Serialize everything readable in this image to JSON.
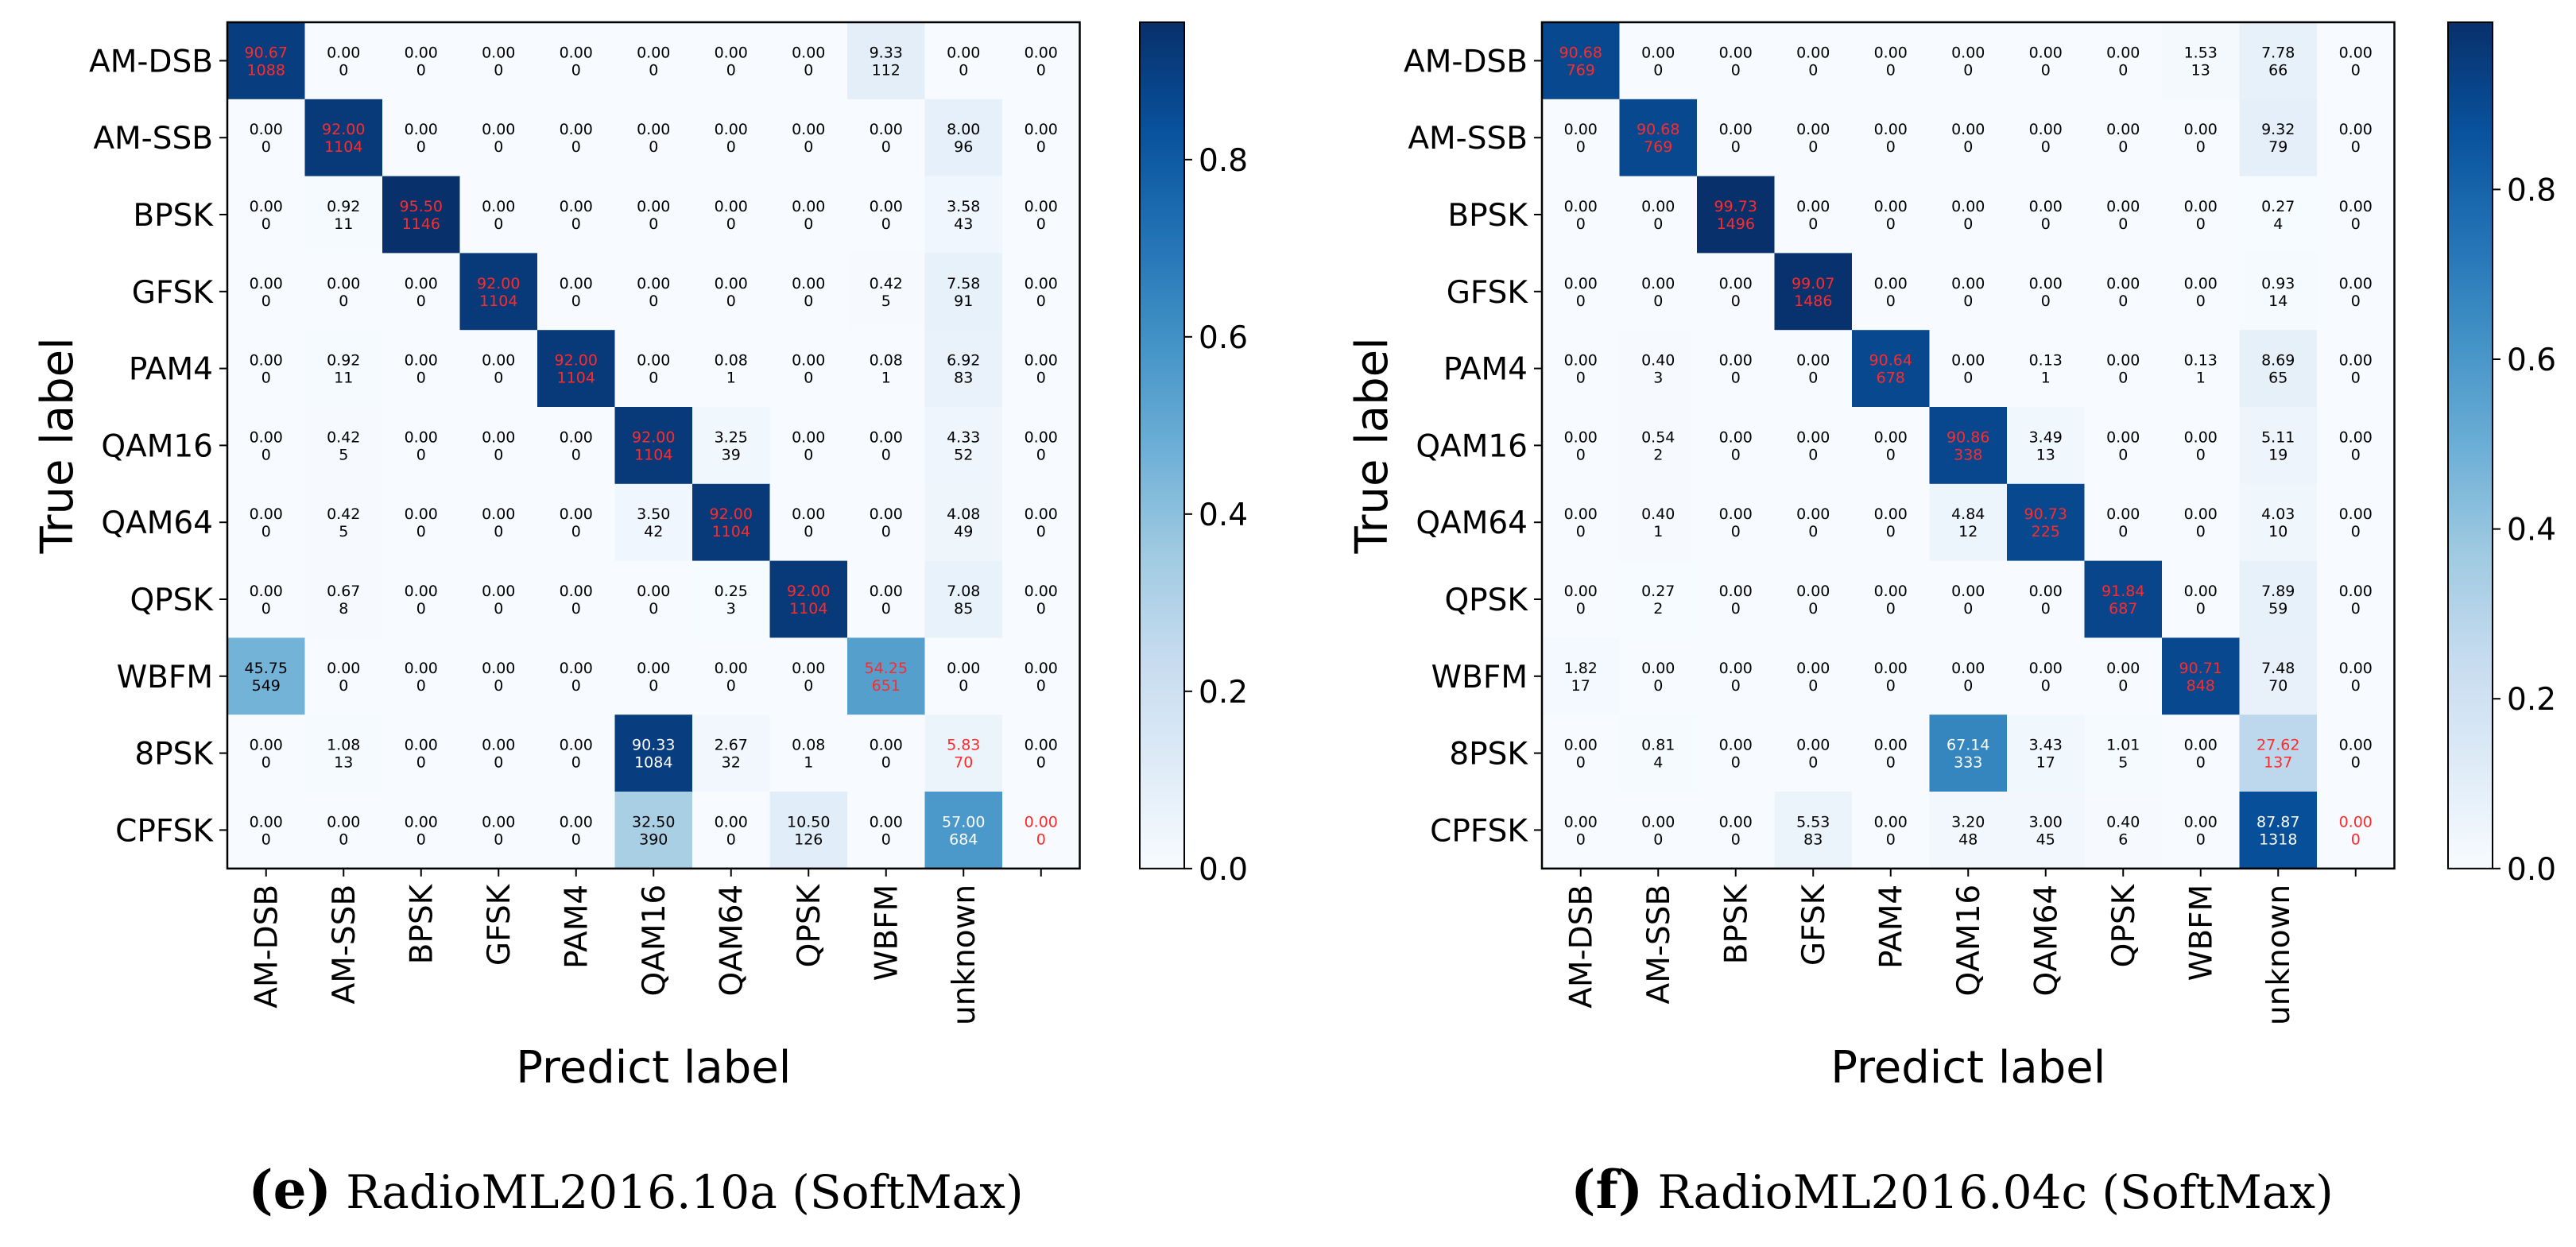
{
  "chart_data": [
    {
      "type": "heatmap",
      "subtitle": "confusion matrix",
      "caption_letter": "(e)",
      "caption_text": "RadioML2016.10a (SoftMax)",
      "xlabel": "Predict label",
      "ylabel": "True label",
      "row_labels": [
        "AM-DSB",
        "AM-SSB",
        "BPSK",
        "GFSK",
        "PAM4",
        "QAM16",
        "QAM64",
        "QPSK",
        "WBFM",
        "8PSK",
        "CPFSK"
      ],
      "col_labels": [
        "AM-DSB",
        "AM-SSB",
        "BPSK",
        "GFSK",
        "PAM4",
        "QAM16",
        "QAM64",
        "QPSK",
        "WBFM",
        "unknown",
        ""
      ],
      "pct": [
        [
          "90.67",
          "0.00",
          "0.00",
          "0.00",
          "0.00",
          "0.00",
          "0.00",
          "0.00",
          "9.33",
          "0.00",
          "0.00"
        ],
        [
          "0.00",
          "92.00",
          "0.00",
          "0.00",
          "0.00",
          "0.00",
          "0.00",
          "0.00",
          "0.00",
          "8.00",
          "0.00"
        ],
        [
          "0.00",
          "0.92",
          "95.50",
          "0.00",
          "0.00",
          "0.00",
          "0.00",
          "0.00",
          "0.00",
          "3.58",
          "0.00"
        ],
        [
          "0.00",
          "0.00",
          "0.00",
          "92.00",
          "0.00",
          "0.00",
          "0.00",
          "0.00",
          "0.42",
          "7.58",
          "0.00"
        ],
        [
          "0.00",
          "0.92",
          "0.00",
          "0.00",
          "92.00",
          "0.00",
          "0.08",
          "0.00",
          "0.08",
          "6.92",
          "0.00"
        ],
        [
          "0.00",
          "0.42",
          "0.00",
          "0.00",
          "0.00",
          "92.00",
          "3.25",
          "0.00",
          "0.00",
          "4.33",
          "0.00"
        ],
        [
          "0.00",
          "0.42",
          "0.00",
          "0.00",
          "0.00",
          "3.50",
          "92.00",
          "0.00",
          "0.00",
          "4.08",
          "0.00"
        ],
        [
          "0.00",
          "0.67",
          "0.00",
          "0.00",
          "0.00",
          "0.00",
          "0.25",
          "92.00",
          "0.00",
          "7.08",
          "0.00"
        ],
        [
          "45.75",
          "0.00",
          "0.00",
          "0.00",
          "0.00",
          "0.00",
          "0.00",
          "0.00",
          "54.25",
          "0.00",
          "0.00"
        ],
        [
          "0.00",
          "1.08",
          "0.00",
          "0.00",
          "0.00",
          "90.33",
          "2.67",
          "0.08",
          "0.00",
          "5.83",
          "0.00"
        ],
        [
          "0.00",
          "0.00",
          "0.00",
          "0.00",
          "0.00",
          "32.50",
          "0.00",
          "10.50",
          "0.00",
          "57.00",
          "0.00"
        ]
      ],
      "counts": [
        [
          "1088",
          "0",
          "0",
          "0",
          "0",
          "0",
          "0",
          "0",
          "112",
          "0",
          "0"
        ],
        [
          "0",
          "1104",
          "0",
          "0",
          "0",
          "0",
          "0",
          "0",
          "0",
          "96",
          "0"
        ],
        [
          "0",
          "11",
          "1146",
          "0",
          "0",
          "0",
          "0",
          "0",
          "0",
          "43",
          "0"
        ],
        [
          "0",
          "0",
          "0",
          "1104",
          "0",
          "0",
          "0",
          "0",
          "5",
          "91",
          "0"
        ],
        [
          "0",
          "11",
          "0",
          "0",
          "1104",
          "0",
          "1",
          "0",
          "1",
          "83",
          "0"
        ],
        [
          "0",
          "5",
          "0",
          "0",
          "0",
          "1104",
          "39",
          "0",
          "0",
          "52",
          "0"
        ],
        [
          "0",
          "5",
          "0",
          "0",
          "0",
          "42",
          "1104",
          "0",
          "0",
          "49",
          "0"
        ],
        [
          "0",
          "8",
          "0",
          "0",
          "0",
          "0",
          "3",
          "1104",
          "0",
          "85",
          "0"
        ],
        [
          "549",
          "0",
          "0",
          "0",
          "0",
          "0",
          "0",
          "0",
          "651",
          "0",
          "0"
        ],
        [
          "0",
          "13",
          "0",
          "0",
          "0",
          "1084",
          "32",
          "1",
          "0",
          "70",
          "0"
        ],
        [
          "0",
          "0",
          "0",
          "0",
          "0",
          "390",
          "0",
          "126",
          "0",
          "684",
          "0"
        ]
      ],
      "colorbar": {
        "range": [
          0.0,
          0.955
        ],
        "ticks": [
          "0.0",
          "0.2",
          "0.4",
          "0.6",
          "0.8"
        ]
      },
      "colormap": {
        "low": "#f7fbff",
        "mid": "#6baed6",
        "high": "#08306b",
        "diag_text": "#ff2a2a",
        "text": "#000000"
      }
    },
    {
      "type": "heatmap",
      "subtitle": "confusion matrix",
      "caption_letter": "(f)",
      "caption_text": "RadioML2016.04c (SoftMax)",
      "xlabel": "Predict label",
      "ylabel": "True label",
      "row_labels": [
        "AM-DSB",
        "AM-SSB",
        "BPSK",
        "GFSK",
        "PAM4",
        "QAM16",
        "QAM64",
        "QPSK",
        "WBFM",
        "8PSK",
        "CPFSK"
      ],
      "col_labels": [
        "AM-DSB",
        "AM-SSB",
        "BPSK",
        "GFSK",
        "PAM4",
        "QAM16",
        "QAM64",
        "QPSK",
        "WBFM",
        "unknown",
        ""
      ],
      "pct": [
        [
          "90.68",
          "0.00",
          "0.00",
          "0.00",
          "0.00",
          "0.00",
          "0.00",
          "0.00",
          "1.53",
          "7.78",
          "0.00"
        ],
        [
          "0.00",
          "90.68",
          "0.00",
          "0.00",
          "0.00",
          "0.00",
          "0.00",
          "0.00",
          "0.00",
          "9.32",
          "0.00"
        ],
        [
          "0.00",
          "0.00",
          "99.73",
          "0.00",
          "0.00",
          "0.00",
          "0.00",
          "0.00",
          "0.00",
          "0.27",
          "0.00"
        ],
        [
          "0.00",
          "0.00",
          "0.00",
          "99.07",
          "0.00",
          "0.00",
          "0.00",
          "0.00",
          "0.00",
          "0.93",
          "0.00"
        ],
        [
          "0.00",
          "0.40",
          "0.00",
          "0.00",
          "90.64",
          "0.00",
          "0.13",
          "0.00",
          "0.13",
          "8.69",
          "0.00"
        ],
        [
          "0.00",
          "0.54",
          "0.00",
          "0.00",
          "0.00",
          "90.86",
          "3.49",
          "0.00",
          "0.00",
          "5.11",
          "0.00"
        ],
        [
          "0.00",
          "0.40",
          "0.00",
          "0.00",
          "0.00",
          "4.84",
          "90.73",
          "0.00",
          "0.00",
          "4.03",
          "0.00"
        ],
        [
          "0.00",
          "0.27",
          "0.00",
          "0.00",
          "0.00",
          "0.00",
          "0.00",
          "91.84",
          "0.00",
          "7.89",
          "0.00"
        ],
        [
          "1.82",
          "0.00",
          "0.00",
          "0.00",
          "0.00",
          "0.00",
          "0.00",
          "0.00",
          "90.71",
          "7.48",
          "0.00"
        ],
        [
          "0.00",
          "0.81",
          "0.00",
          "0.00",
          "0.00",
          "67.14",
          "3.43",
          "1.01",
          "0.00",
          "27.62",
          "0.00"
        ],
        [
          "0.00",
          "0.00",
          "0.00",
          "5.53",
          "0.00",
          "3.20",
          "3.00",
          "0.40",
          "0.00",
          "87.87",
          "0.00"
        ]
      ],
      "counts": [
        [
          "769",
          "0",
          "0",
          "0",
          "0",
          "0",
          "0",
          "0",
          "13",
          "66",
          "0"
        ],
        [
          "0",
          "769",
          "0",
          "0",
          "0",
          "0",
          "0",
          "0",
          "0",
          "79",
          "0"
        ],
        [
          "0",
          "0",
          "1496",
          "0",
          "0",
          "0",
          "0",
          "0",
          "0",
          "4",
          "0"
        ],
        [
          "0",
          "0",
          "0",
          "1486",
          "0",
          "0",
          "0",
          "0",
          "0",
          "14",
          "0"
        ],
        [
          "0",
          "3",
          "0",
          "0",
          "678",
          "0",
          "1",
          "0",
          "1",
          "65",
          "0"
        ],
        [
          "0",
          "2",
          "0",
          "0",
          "0",
          "338",
          "13",
          "0",
          "0",
          "19",
          "0"
        ],
        [
          "0",
          "1",
          "0",
          "0",
          "0",
          "12",
          "225",
          "0",
          "0",
          "10",
          "0"
        ],
        [
          "0",
          "2",
          "0",
          "0",
          "0",
          "0",
          "0",
          "687",
          "0",
          "59",
          "0"
        ],
        [
          "17",
          "0",
          "0",
          "0",
          "0",
          "0",
          "0",
          "0",
          "848",
          "70",
          "0"
        ],
        [
          "0",
          "4",
          "0",
          "0",
          "0",
          "333",
          "17",
          "5",
          "0",
          "137",
          "0"
        ],
        [
          "0",
          "0",
          "0",
          "83",
          "0",
          "48",
          "45",
          "6",
          "0",
          "1318",
          "0"
        ]
      ],
      "colorbar": {
        "range": [
          0.0,
          0.997
        ],
        "ticks": [
          "0.0",
          "0.2",
          "0.4",
          "0.6",
          "0.8"
        ]
      },
      "colormap": {
        "low": "#f7fbff",
        "mid": "#6baed6",
        "high": "#08306b",
        "diag_text": "#ff2a2a",
        "text": "#000000"
      }
    }
  ]
}
